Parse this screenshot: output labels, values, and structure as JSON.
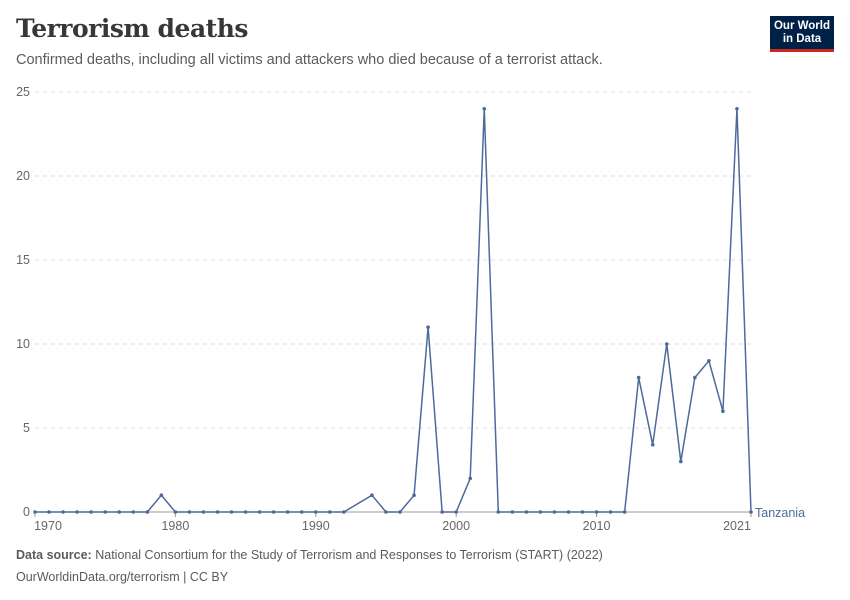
{
  "header": {
    "title": "Terrorism deaths",
    "subtitle": "Confirmed deaths, including all victims and attackers who died because of a terrorist attack.",
    "logo": "Our World in Data"
  },
  "footer": {
    "source_label": "Data source:",
    "source_text": "National Consortium for the Study of Terrorism and Responses to Terrorism (START) (2022)",
    "url": "OurWorldinData.org/terrorism | CC BY"
  },
  "chart_data": {
    "type": "line",
    "title": "Terrorism deaths",
    "xlabel": "",
    "ylabel": "",
    "xlim": [
      1970,
      2021
    ],
    "ylim": [
      0,
      25
    ],
    "y_ticks": [
      0,
      5,
      10,
      15,
      20,
      25
    ],
    "x_ticks": [
      1970,
      1980,
      1990,
      2000,
      2010,
      2021
    ],
    "grid": true,
    "series": [
      {
        "name": "Tanzania",
        "color": "#4c6a9c",
        "x": [
          1970,
          1971,
          1972,
          1973,
          1974,
          1975,
          1976,
          1977,
          1978,
          1979,
          1980,
          1981,
          1982,
          1983,
          1984,
          1985,
          1986,
          1987,
          1988,
          1989,
          1990,
          1991,
          1992,
          1994,
          1995,
          1996,
          1997,
          1998,
          1999,
          2000,
          2001,
          2002,
          2003,
          2004,
          2005,
          2006,
          2007,
          2008,
          2009,
          2010,
          2011,
          2012,
          2013,
          2014,
          2015,
          2016,
          2017,
          2018,
          2019,
          2020,
          2021
        ],
        "values": [
          0,
          0,
          0,
          0,
          0,
          0,
          0,
          0,
          0,
          1,
          0,
          0,
          0,
          0,
          0,
          0,
          0,
          0,
          0,
          0,
          0,
          0,
          0,
          1,
          0,
          0,
          1,
          11,
          0,
          0,
          2,
          24,
          0,
          0,
          0,
          0,
          0,
          0,
          0,
          0,
          0,
          0,
          8,
          4,
          10,
          3,
          8,
          9,
          6,
          24,
          0
        ]
      }
    ]
  }
}
